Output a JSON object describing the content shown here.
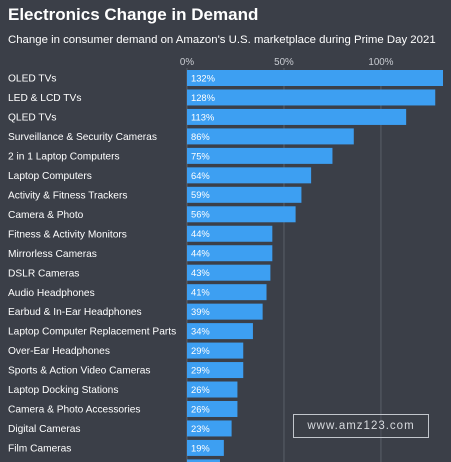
{
  "title": "Electronics Change in Demand",
  "subtitle": "Change in consumer demand on Amazon's U.S. marketplace during Prime Day 2021",
  "watermark": "www.amz123.com",
  "colors": {
    "bar": "#3d9ff2",
    "background": "#3b3f48",
    "grid": "#5a5f69"
  },
  "chart_data": {
    "type": "bar",
    "orientation": "horizontal",
    "categories": [
      "OLED TVs",
      "LED & LCD TVs",
      "QLED TVs",
      "Surveillance & Security Cameras",
      "2 in 1 Laptop Computers",
      "Laptop Computers",
      "Activity & Fitness Trackers",
      "Camera & Photo",
      "Fitness & Activity Monitors",
      "Mirrorless Cameras",
      "DSLR Cameras",
      "Audio Headphones",
      "Earbud & In-Ear Headphones",
      "Laptop Computer Replacement Parts",
      "Over-Ear Headphones",
      "Sports & Action Video Cameras",
      "Laptop Docking Stations",
      "Camera & Photo Accessories",
      "Digital Cameras",
      "Film Cameras"
    ],
    "values": [
      132,
      128,
      113,
      86,
      75,
      64,
      59,
      56,
      44,
      44,
      43,
      41,
      39,
      34,
      29,
      29,
      26,
      26,
      23,
      19
    ],
    "value_labels": [
      "132%",
      "128%",
      "113%",
      "86%",
      "75%",
      "64%",
      "59%",
      "56%",
      "44%",
      "44%",
      "43%",
      "41%",
      "39%",
      "34%",
      "29%",
      "29%",
      "26%",
      "26%",
      "23%",
      "19%"
    ],
    "xaxis_ticks": [
      0,
      50,
      100
    ],
    "xaxis_tick_labels": [
      "0%",
      "50%",
      "100%"
    ],
    "xlim": [
      0,
      132
    ],
    "grid": true,
    "xlabel": "",
    "ylabel": ""
  }
}
